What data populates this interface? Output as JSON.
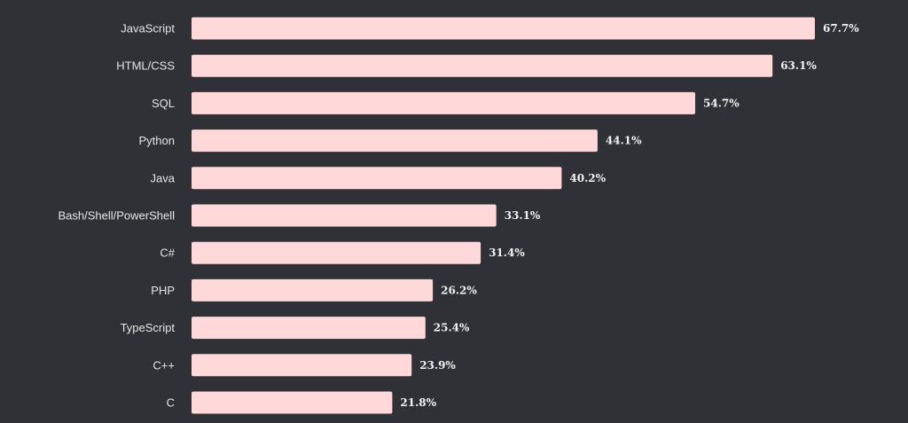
{
  "chart_data": {
    "type": "bar",
    "orientation": "horizontal",
    "categories": [
      "JavaScript",
      "HTML/CSS",
      "SQL",
      "Python",
      "Java",
      "Bash/Shell/PowerShell",
      "C#",
      "PHP",
      "TypeScript",
      "C++",
      "C"
    ],
    "values": [
      67.7,
      63.1,
      54.7,
      44.1,
      40.2,
      33.1,
      31.4,
      26.2,
      25.4,
      23.9,
      21.8
    ],
    "value_labels": [
      "67.7%",
      "63.1%",
      "54.7%",
      "44.1%",
      "40.2%",
      "33.1%",
      "31.4%",
      "26.2%",
      "25.4%",
      "23.9%",
      "21.8%"
    ],
    "title": "",
    "xlabel": "",
    "ylabel": "",
    "xlim": [
      0,
      67.7
    ],
    "grid": false,
    "legend": "none",
    "colors": {
      "background": "#2f3136",
      "bar": "#ffd9d9",
      "category_text": "#e6e6e6",
      "value_text": "#f2f2f2"
    }
  }
}
